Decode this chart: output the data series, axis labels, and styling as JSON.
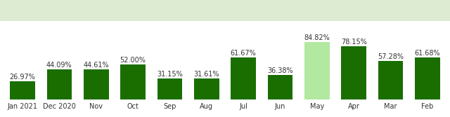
{
  "categories": [
    "Jan 2021",
    "Dec 2020",
    "Nov",
    "Oct",
    "Sep",
    "Aug",
    "Jul",
    "Jun",
    "May",
    "Apr",
    "Mar",
    "Feb"
  ],
  "values": [
    26.97,
    44.09,
    44.61,
    52.0,
    31.15,
    31.61,
    61.67,
    36.38,
    84.82,
    78.15,
    57.28,
    61.68
  ],
  "pct_labels": [
    "26.97%",
    "44.09%",
    "44.61%",
    "52.00%",
    "31.15%",
    "31.61%",
    "61.67%",
    "36.38%",
    "84.82%",
    "78.15%",
    "57.28%",
    "61.68%"
  ],
  "bar_colors": [
    "#1a6e00",
    "#1a6e00",
    "#1a6e00",
    "#1a6e00",
    "#1a6e00",
    "#1a6e00",
    "#1a6e00",
    "#1a6e00",
    "#b2e8a0",
    "#1a6e00",
    "#1a6e00",
    "#1a6e00"
  ],
  "background_top": "#ddebd2",
  "background_bottom": "#ffffff",
  "label_fontsize": 7.0,
  "bar_width": 0.68,
  "ylim_max": 100
}
